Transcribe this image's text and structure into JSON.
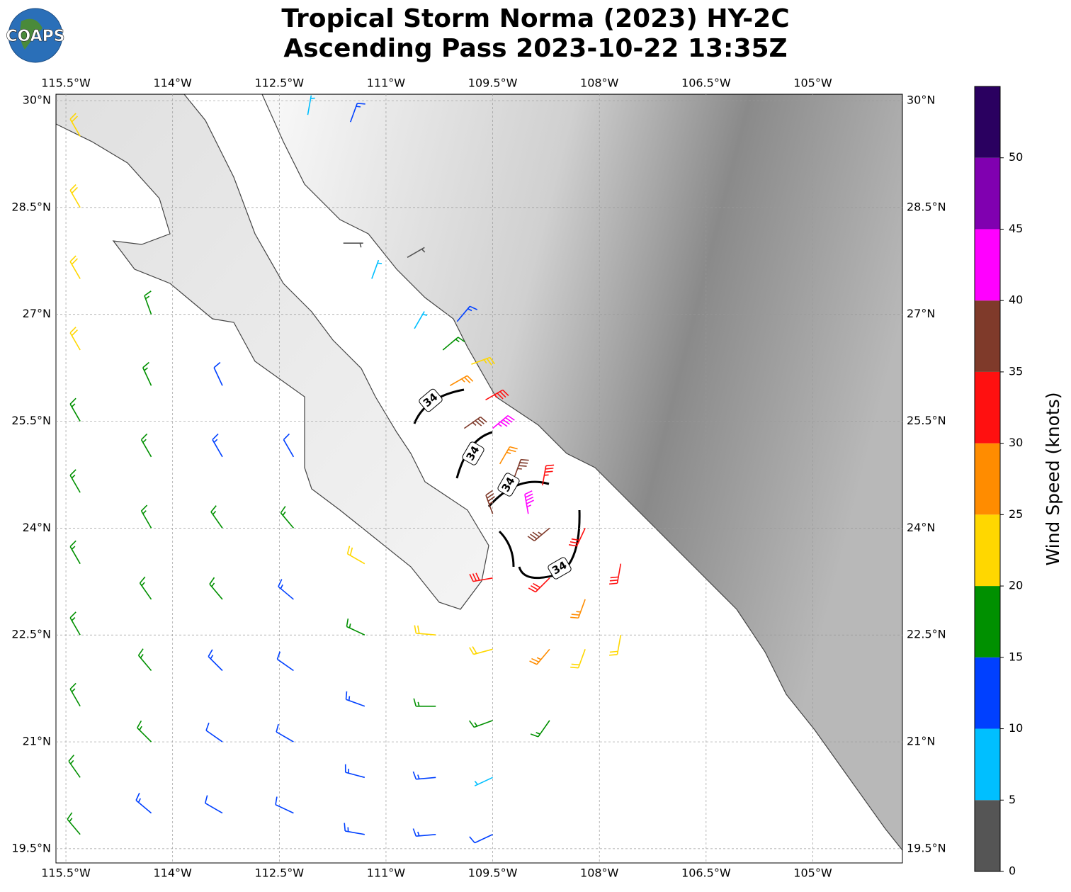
{
  "header": {
    "title_lines": [
      "Tropical Storm Norma (2023) HY-2C",
      "Ascending Pass 2023-10-22 13:35Z"
    ]
  },
  "logo": "COAPS",
  "map": {
    "lonlim": [
      -115.64,
      -103.74
    ],
    "latlim": [
      19.3,
      30.09
    ],
    "lon_ticks": [
      {
        "value": -115.5,
        "label": "115.5°W"
      },
      {
        "value": -114,
        "label": "114°W"
      },
      {
        "value": -112.5,
        "label": "112.5°W"
      },
      {
        "value": -111,
        "label": "111°W"
      },
      {
        "value": -109.5,
        "label": "109.5°W"
      },
      {
        "value": -108,
        "label": "108°W"
      },
      {
        "value": -106.5,
        "label": "106.5°W"
      },
      {
        "value": -105,
        "label": "105°W"
      }
    ],
    "lat_ticks": [
      {
        "value": 30,
        "label": "30°N"
      },
      {
        "value": 28.5,
        "label": "28.5°N"
      },
      {
        "value": 27,
        "label": "27°N"
      },
      {
        "value": 25.5,
        "label": "25.5°N"
      },
      {
        "value": 24,
        "label": "24°N"
      },
      {
        "value": 22.5,
        "label": "22.5°N"
      },
      {
        "value": 21,
        "label": "21°N"
      },
      {
        "value": 19.5,
        "label": "19.5°N"
      }
    ],
    "contour_level": 34,
    "barbs": [
      [
        -115.3,
        29.5,
        22,
        330
      ],
      [
        -115.3,
        28.5,
        22,
        330
      ],
      [
        -115.3,
        27.5,
        22,
        330
      ],
      [
        -115.3,
        26.5,
        20,
        330
      ],
      [
        -115.3,
        25.5,
        18,
        330
      ],
      [
        -115.3,
        24.5,
        18,
        330
      ],
      [
        -115.3,
        23.5,
        18,
        330
      ],
      [
        -115.3,
        22.5,
        17,
        330
      ],
      [
        -115.3,
        21.5,
        17,
        330
      ],
      [
        -115.3,
        20.5,
        17,
        325
      ],
      [
        -115.3,
        19.7,
        16,
        320
      ],
      [
        -114.3,
        27,
        17,
        340
      ],
      [
        -114.3,
        26,
        15,
        335
      ],
      [
        -114.3,
        25,
        17,
        330
      ],
      [
        -114.3,
        24,
        17,
        330
      ],
      [
        -114.3,
        23,
        17,
        325
      ],
      [
        -114.3,
        22,
        17,
        320
      ],
      [
        -114.3,
        21,
        15,
        315
      ],
      [
        -114.3,
        20,
        13,
        310
      ],
      [
        -113.3,
        26,
        12,
        335
      ],
      [
        -113.3,
        25,
        13,
        330
      ],
      [
        -113.3,
        24,
        17,
        325
      ],
      [
        -113.3,
        23,
        17,
        320
      ],
      [
        -113.3,
        22,
        13,
        315
      ],
      [
        -113.3,
        21,
        12,
        305
      ],
      [
        -113.3,
        20,
        12,
        300
      ],
      [
        -112.3,
        25,
        12,
        330
      ],
      [
        -112.3,
        24,
        17,
        320
      ],
      [
        -112.3,
        23,
        13,
        310
      ],
      [
        -112.3,
        22,
        12,
        305
      ],
      [
        -112.3,
        21,
        12,
        300
      ],
      [
        -112.3,
        20,
        12,
        295
      ],
      [
        -111.3,
        23.5,
        22,
        300
      ],
      [
        -111.3,
        22.5,
        17,
        295
      ],
      [
        -111.3,
        21.5,
        13,
        290
      ],
      [
        -111.3,
        20.5,
        13,
        285
      ],
      [
        -111.3,
        19.7,
        13,
        280
      ],
      [
        -110.3,
        22.5,
        22,
        275
      ],
      [
        -110.3,
        21.5,
        17,
        270
      ],
      [
        -110.3,
        20.5,
        13,
        265
      ],
      [
        -110.3,
        19.7,
        13,
        265
      ],
      [
        -109.5,
        23.3,
        32,
        260
      ],
      [
        -109.5,
        22.3,
        22,
        255
      ],
      [
        -109.5,
        21.3,
        17,
        250
      ],
      [
        -109.5,
        20.5,
        8,
        245
      ],
      [
        -109.5,
        19.7,
        12,
        245
      ],
      [
        -108.7,
        24,
        36,
        230
      ],
      [
        -108.7,
        23.3,
        32,
        225
      ],
      [
        -108.7,
        22.3,
        27,
        220
      ],
      [
        -108.7,
        21.3,
        17,
        215
      ],
      [
        -108.2,
        24,
        32,
        205
      ],
      [
        -108.2,
        23,
        27,
        200
      ],
      [
        -108.2,
        22.3,
        22,
        200
      ],
      [
        -107.7,
        23.5,
        32,
        190
      ],
      [
        -107.7,
        22.5,
        22,
        190
      ],
      [
        -109.8,
        26.3,
        23,
        70
      ],
      [
        -109.6,
        25.8,
        33,
        60
      ],
      [
        -109.5,
        25.4,
        43,
        50
      ],
      [
        -109.9,
        25.4,
        37,
        55
      ],
      [
        -109.4,
        24.9,
        28,
        30
      ],
      [
        -109.2,
        24.7,
        37,
        20
      ],
      [
        -109,
        24.2,
        43,
        350
      ],
      [
        -109.5,
        24.2,
        37,
        340
      ],
      [
        -108.8,
        24.6,
        33,
        10
      ],
      [
        -111.2,
        27.5,
        8,
        20
      ],
      [
        -110.7,
        27.8,
        4,
        60
      ],
      [
        -111.6,
        28,
        3,
        90
      ],
      [
        -112.1,
        29.8,
        8,
        10
      ],
      [
        -111.5,
        29.7,
        13,
        20
      ],
      [
        -110.6,
        26.8,
        8,
        30
      ],
      [
        -110,
        26.9,
        13,
        40
      ],
      [
        -110.2,
        26.5,
        17,
        50
      ],
      [
        -110.1,
        26,
        27,
        60
      ]
    ]
  },
  "colorbar": {
    "label": "Wind Speed (knots)",
    "bounds": [
      0,
      5,
      10,
      15,
      20,
      25,
      30,
      35,
      40,
      45,
      50,
      55
    ],
    "colors": [
      "#555555",
      "#00bfff",
      "#0040ff",
      "#009000",
      "#ffd700",
      "#ff8c00",
      "#ff1010",
      "#7f3a2a",
      "#ff00ff",
      "#8000b0",
      "#2a0060"
    ],
    "ticks": [
      0,
      5,
      10,
      15,
      20,
      25,
      30,
      35,
      40,
      45,
      50
    ]
  }
}
